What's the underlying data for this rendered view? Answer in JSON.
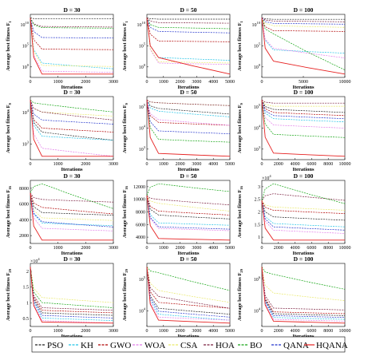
{
  "palette": {
    "PSO": "#222222",
    "KH": "#22c3e6",
    "GWO": "#b00000",
    "WOA": "#e27ce9",
    "CSA": "#e9e96a",
    "HOA": "#7a1e3e",
    "BO": "#14a514",
    "QANA": "#2233cc",
    "HQANA": "#e62222"
  },
  "legend": [
    "PSO",
    "KH",
    "GWO",
    "WOA",
    "CSA",
    "HOA",
    "BO",
    "QANA",
    "HQANA"
  ],
  "chart_data": [
    {
      "type": "line",
      "title": "D = 30",
      "xlabel": "Iterations",
      "ylabel": "Average best fitness F",
      "ylabel_sub": "1",
      "scale": "log",
      "xticks": [
        "0",
        "1000",
        "2000",
        "3000"
      ],
      "yticks": [
        "10^0",
        "10^5",
        "10^10"
      ],
      "series": {
        "PSO": [
          10,
          9.8,
          9.8
        ],
        "KH": [
          10,
          2.2,
          1.2
        ],
        "GWO": [
          10,
          4.6,
          4.5
        ],
        "WOA": [
          10,
          0.8,
          0.6
        ],
        "CSA": [
          10,
          1.8,
          1.6
        ],
        "HOA": [
          10,
          8.5,
          8.4
        ],
        "BO": [
          10,
          8.3,
          8.2
        ],
        "QANA": [
          10,
          6.6,
          6.5
        ],
        "HQANA": [
          10,
          0.3,
          0.3
        ]
      }
    },
    {
      "type": "line",
      "title": "D = 50",
      "xlabel": "Iterations",
      "ylabel": "Average best fitness F",
      "ylabel_sub": "1",
      "scale": "log",
      "xticks": [
        "0",
        "1000",
        "2000",
        "3000",
        "4000",
        "5000"
      ],
      "yticks": [
        "10^0",
        "10^5",
        "10^10"
      ],
      "series": {
        "PSO": [
          10,
          9.8,
          9.8
        ],
        "KH": [
          10,
          4.2,
          3.8
        ],
        "GWO": [
          10,
          6.6,
          6.5
        ],
        "WOA": [
          10,
          3.4,
          3.2
        ],
        "CSA": [
          10,
          3.6,
          3.4
        ],
        "HOA": [
          10,
          9.3,
          9.2
        ],
        "BO": [
          10,
          8.6,
          8.4
        ],
        "QANA": [
          10,
          8,
          7.8
        ],
        "HQANA": [
          10,
          4.2,
          1.8
        ]
      }
    },
    {
      "type": "line",
      "title": "D = 100",
      "xlabel": "Iterations",
      "ylabel": "Average best fitness F",
      "ylabel_sub": "1",
      "scale": "log",
      "xticks": [
        "0",
        "5000",
        "10000"
      ],
      "yticks": [
        "10^0",
        "10^5",
        "10^10"
      ],
      "series": {
        "PSO": [
          10,
          9.8,
          9.8
        ],
        "KH": [
          10,
          6,
          5.6
        ],
        "GWO": [
          10,
          8.4,
          8.3
        ],
        "WOA": [
          10,
          6.2,
          5
        ],
        "CSA": [
          10,
          9,
          8.8
        ],
        "HOA": [
          10,
          9.6,
          9.5
        ],
        "BO": [
          10,
          8,
          3.5
        ],
        "QANA": [
          10,
          9.3,
          9.2
        ],
        "HQANA": [
          10,
          4.6,
          3
        ]
      }
    },
    {
      "type": "line",
      "title": "D = 30",
      "xlabel": "Iterations",
      "ylabel": "Average best fitness F",
      "ylabel_sub": "9",
      "scale": "log",
      "xticks": [
        "0",
        "1000",
        "2000",
        "3000"
      ],
      "yticks": [
        "10^3",
        "10^4"
      ],
      "series": {
        "PSO": [
          4.4,
          3.6,
          3.4
        ],
        "KH": [
          4.4,
          3.5,
          3.4
        ],
        "GWO": [
          4.4,
          3.7,
          3.6
        ],
        "WOA": [
          4.4,
          3.2,
          3.0
        ],
        "CSA": [
          4.4,
          4.1,
          4.0
        ],
        "HOA": [
          4.4,
          4.1,
          3.9
        ],
        "BO": [
          4.4,
          4.3,
          4.1
        ],
        "QANA": [
          4.4,
          3.9,
          3.8
        ],
        "HQANA": [
          4.4,
          3.0,
          3.0
        ]
      }
    },
    {
      "type": "line",
      "title": "D = 50",
      "xlabel": "Iterations",
      "ylabel": "Average best fitness F",
      "ylabel_sub": "9",
      "scale": "log",
      "xticks": [
        "0",
        "1000",
        "2000",
        "3000",
        "4000",
        "5000"
      ],
      "yticks": [
        "10^3",
        "10^4",
        "10^5"
      ],
      "series": {
        "PSO": [
          5,
          4.7,
          4.5
        ],
        "KH": [
          5,
          4.6,
          4.4
        ],
        "GWO": [
          5,
          4.2,
          4.1
        ],
        "WOA": [
          5,
          4.3,
          4.1
        ],
        "CSA": [
          5,
          4.9,
          4.8
        ],
        "HOA": [
          5,
          4.9,
          4.8
        ],
        "BO": [
          5,
          3.6,
          3.5
        ],
        "QANA": [
          5,
          3.9,
          3.8
        ],
        "HQANA": [
          5,
          3.1,
          3.0
        ]
      }
    },
    {
      "type": "line",
      "title": "D = 100",
      "xlabel": "Iterations",
      "ylabel": "Average best fitness F",
      "ylabel_sub": "9",
      "scale": "log",
      "xticks": [
        "0",
        "2000",
        "4000",
        "6000",
        "8000",
        "10000"
      ],
      "yticks": [
        "10^3",
        "10^4",
        "10^5"
      ],
      "series": {
        "PSO": [
          5.2,
          4.9,
          4.8
        ],
        "KH": [
          5.2,
          4.6,
          4.5
        ],
        "GWO": [
          5.2,
          4.8,
          4.7
        ],
        "WOA": [
          5.2,
          4.4,
          4.3
        ],
        "CSA": [
          5.2,
          5.0,
          5.0
        ],
        "HOA": [
          5.2,
          5.1,
          5.1
        ],
        "BO": [
          5.2,
          4.1,
          4.0
        ],
        "QANA": [
          5.2,
          4.7,
          4.6
        ],
        "HQANA": [
          5.2,
          3.5,
          3.4
        ]
      }
    },
    {
      "type": "line",
      "title": "D = 30",
      "xlabel": "Iterations",
      "ylabel": "Average best fitness F",
      "ylabel_sub": "16",
      "scale": "linear",
      "xticks": [
        "0",
        "1000",
        "2000",
        "3000"
      ],
      "yticks": [
        "2000",
        "4000",
        "6000",
        "8000"
      ],
      "series": {
        "PSO": [
          5500,
          4000,
          3800
        ],
        "KH": [
          5500,
          3200,
          3000
        ],
        "GWO": [
          5500,
          4400,
          3900
        ],
        "WOA": [
          5500,
          2800,
          2600
        ],
        "CSA": [
          5500,
          3600,
          3400
        ],
        "HOA": [
          5500,
          5000,
          4800
        ],
        "BO": [
          5500,
          6200,
          4300
        ],
        "QANA": [
          5500,
          3300,
          2900
        ],
        "HQANA": [
          5500,
          1900,
          1900
        ]
      }
    },
    {
      "type": "line",
      "title": "D = 50",
      "xlabel": "Iterations",
      "ylabel": "Average best fitness F",
      "ylabel_sub": "16",
      "scale": "linear",
      "xticks": [
        "0",
        "1000",
        "2000",
        "3000",
        "4000",
        "5000"
      ],
      "yticks": [
        "4000",
        "6000",
        "8000",
        "10000",
        "12000"
      ],
      "series": {
        "PSO": [
          9000,
          6500,
          6000
        ],
        "KH": [
          9000,
          5500,
          5200
        ],
        "GWO": [
          9000,
          7000,
          6500
        ],
        "WOA": [
          9000,
          4800,
          4500
        ],
        "CSA": [
          9000,
          8000,
          7000
        ],
        "HOA": [
          9000,
          8500,
          7800
        ],
        "BO": [
          9000,
          10500,
          9500
        ],
        "QANA": [
          9000,
          5000,
          4700
        ],
        "HQANA": [
          9000,
          3500,
          3300
        ]
      }
    },
    {
      "type": "line",
      "title": "D = 100",
      "xlabel": "Iterations",
      "ylabel": "Average best fitness F",
      "ylabel_sub": "16",
      "scale": "linear",
      "yexp": "×10^4",
      "xticks": [
        "0",
        "2000",
        "4000",
        "6000",
        "8000",
        "10000"
      ],
      "yticks": [
        "1",
        "1.5",
        "2",
        "2.5",
        "3"
      ],
      "series": {
        "PSO": [
          2.3,
          1.8,
          1.7
        ],
        "KH": [
          2.3,
          1.6,
          1.5
        ],
        "GWO": [
          2.3,
          2.0,
          1.9
        ],
        "WOA": [
          2.3,
          1.4,
          1.3
        ],
        "CSA": [
          2.3,
          2.1,
          2.0
        ],
        "HOA": [
          2.3,
          2.5,
          2.3
        ],
        "BO": [
          2.3,
          2.8,
          2.2
        ],
        "QANA": [
          2.3,
          1.5,
          1.4
        ],
        "HQANA": [
          2.3,
          1.1,
          1.1
        ]
      }
    },
    {
      "type": "line",
      "title": "D = 30",
      "xlabel": "Iterations",
      "ylabel": "Average best fitness F",
      "ylabel_sub": "29",
      "scale": "linear",
      "yexp": "×10^4",
      "xticks": [
        "0",
        "1000",
        "2000",
        "3000"
      ],
      "yticks": [
        "0.5",
        "1",
        "1.5",
        "2"
      ],
      "series": {
        "PSO": [
          1.5,
          0.6,
          0.55
        ],
        "KH": [
          1.5,
          0.5,
          0.45
        ],
        "GWO": [
          1.5,
          0.65,
          0.6
        ],
        "WOA": [
          1.5,
          0.45,
          0.4
        ],
        "CSA": [
          1.5,
          0.9,
          0.8
        ],
        "HOA": [
          1.5,
          0.7,
          0.65
        ],
        "BO": [
          1.5,
          0.8,
          0.7
        ],
        "QANA": [
          1.5,
          0.55,
          0.5
        ],
        "HQANA": [
          1.5,
          0.42,
          0.4
        ]
      }
    },
    {
      "type": "line",
      "title": "D = 50",
      "xlabel": "Iterations",
      "ylabel": "Average best fitness F",
      "ylabel_sub": "29",
      "scale": "log",
      "xticks": [
        "0",
        "1000",
        "2000",
        "3000",
        "4000",
        "5000"
      ],
      "yticks": [
        "10^4",
        "10^5"
      ],
      "series": {
        "PSO": [
          5,
          4.3,
          4.2
        ],
        "KH": [
          5,
          4.2,
          4.1
        ],
        "GWO": [
          5,
          4.4,
          4.3
        ],
        "WOA": [
          5,
          4.15,
          4.1
        ],
        "CSA": [
          5,
          4.6,
          4.4
        ],
        "HOA": [
          5,
          4.5,
          4.3
        ],
        "BO": [
          5,
          4.9,
          4.6
        ],
        "QANA": [
          5,
          4.25,
          4.15
        ],
        "HQANA": [
          5,
          4.1,
          4.05
        ]
      }
    },
    {
      "type": "line",
      "title": "D = 100",
      "xlabel": "Iterations",
      "ylabel": "Average best fitness F",
      "ylabel_sub": "29",
      "scale": "log",
      "xticks": [
        "0",
        "2000",
        "4000",
        "6000",
        "8000",
        "10000"
      ],
      "yticks": [
        "10^4",
        "10^6"
      ],
      "series": {
        "PSO": [
          7,
          4.5,
          4.4
        ],
        "KH": [
          7,
          4.3,
          4.2
        ],
        "GWO": [
          7,
          4.6,
          4.5
        ],
        "WOA": [
          7,
          4.2,
          4.1
        ],
        "CSA": [
          7,
          5.6,
          5.2
        ],
        "HOA": [
          7,
          4.8,
          4.7
        ],
        "BO": [
          7,
          6.6,
          5.8
        ],
        "QANA": [
          7,
          4.4,
          4.3
        ],
        "HQANA": [
          7,
          4.1,
          4.0
        ]
      }
    }
  ]
}
